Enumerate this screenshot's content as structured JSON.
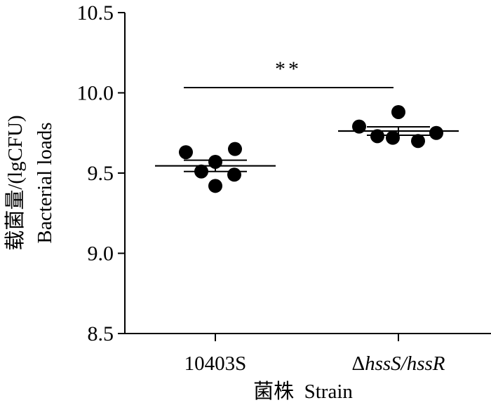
{
  "chart_data": {
    "type": "scatter",
    "subtype": "dot-plot-with-mean-and-sem",
    "title": "",
    "xlabel": "菌株  Strain",
    "ylabel": [
      "载菌量/(lgCFU)",
      "Bacterial loads"
    ],
    "ylim": [
      8.5,
      10.5
    ],
    "yticks": [
      "8.5",
      "9.0",
      "9.5",
      "10.0",
      "10.5"
    ],
    "categories": [
      {
        "label": "10403S",
        "italic": false
      },
      {
        "label": "ΔhssS/hssR",
        "italic": true
      }
    ],
    "series": [
      {
        "category": "10403S",
        "values": [
          9.63,
          9.51,
          9.57,
          9.65,
          9.42,
          9.49
        ],
        "mean": 9.545,
        "sem": 0.035
      },
      {
        "category": "ΔhssS/hssR",
        "values": [
          9.79,
          9.73,
          9.88,
          9.7,
          9.72,
          9.75
        ],
        "mean": 9.762,
        "sem": 0.026
      }
    ],
    "annotations": [
      {
        "type": "significance-bracket",
        "between": [
          "10403S",
          "ΔhssS/hssR"
        ],
        "label": "**"
      }
    ],
    "grid": false,
    "legend": "none",
    "point_color": "#000000"
  }
}
